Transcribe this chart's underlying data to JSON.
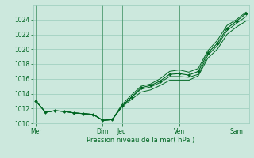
{
  "background_color": "#cce8dd",
  "grid_color": "#99ccbb",
  "line_color": "#006622",
  "marker_color": "#006622",
  "text_color": "#006622",
  "ylim": [
    1010,
    1026
  ],
  "yticks": [
    1010,
    1012,
    1014,
    1016,
    1018,
    1020,
    1022,
    1024
  ],
  "xlabel": "Pression niveau de la mer( hPa )",
  "day_labels": [
    "Mer",
    "Dim",
    "Jeu",
    "Ven",
    "Sam"
  ],
  "day_positions": [
    0,
    7,
    9,
    15,
    21
  ],
  "n_points": 23,
  "series1_y": [
    1013.0,
    1011.5,
    1011.7,
    1011.6,
    1011.4,
    1011.3,
    1011.2,
    1010.4,
    1010.5,
    1012.5,
    1013.8,
    1015.0,
    1015.3,
    1016.0,
    1017.0,
    1017.2,
    1016.9,
    1017.4,
    1019.8,
    1021.2,
    1023.2,
    1024.0,
    1025.0
  ],
  "series2_y": [
    1013.0,
    1011.5,
    1011.7,
    1011.6,
    1011.4,
    1011.3,
    1011.2,
    1010.4,
    1010.5,
    1012.3,
    1013.5,
    1014.6,
    1014.9,
    1015.5,
    1016.3,
    1016.3,
    1016.2,
    1016.6,
    1019.2,
    1020.5,
    1022.5,
    1023.5,
    1024.4
  ],
  "series3_y": [
    1013.0,
    1011.5,
    1011.7,
    1011.6,
    1011.4,
    1011.3,
    1011.2,
    1010.4,
    1010.5,
    1012.2,
    1013.2,
    1014.2,
    1014.5,
    1015.1,
    1015.8,
    1015.8,
    1015.8,
    1016.4,
    1018.8,
    1020.0,
    1022.0,
    1023.0,
    1023.8
  ],
  "series4_x": [
    0,
    1,
    2,
    3,
    4,
    5,
    6,
    7,
    8,
    9,
    10,
    11,
    12,
    13,
    14,
    15,
    16,
    17,
    18,
    19,
    20,
    21,
    22
  ],
  "series4_y": [
    1013.0,
    1011.5,
    1011.7,
    1011.6,
    1011.4,
    1011.3,
    1011.2,
    1010.4,
    1010.5,
    1012.3,
    1013.5,
    1014.8,
    1015.1,
    1015.7,
    1016.6,
    1016.7,
    1016.5,
    1017.0,
    1019.5,
    1020.8,
    1022.8,
    1023.8,
    1024.8
  ],
  "vline_positions": [
    0,
    7,
    9,
    15,
    21
  ]
}
